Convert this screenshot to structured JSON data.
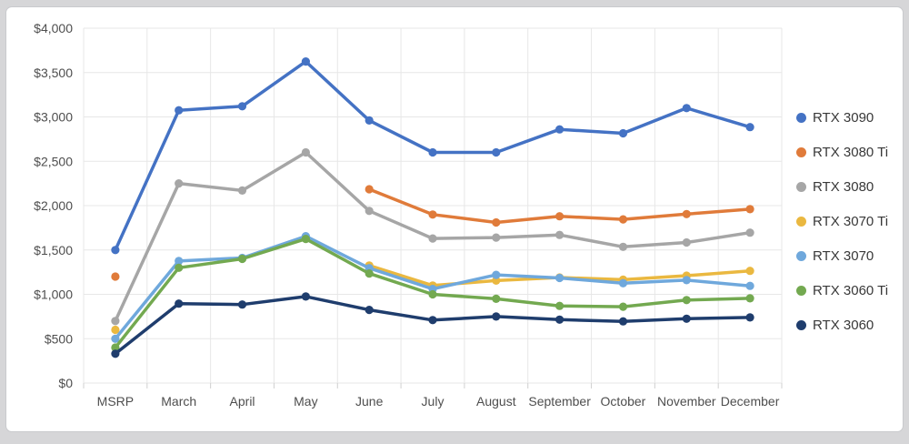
{
  "chart_data": {
    "type": "line",
    "title": "",
    "xlabel": "",
    "ylabel": "",
    "categories": [
      "MSRP",
      "March",
      "April",
      "May",
      "June",
      "July",
      "August",
      "September",
      "October",
      "November",
      "December"
    ],
    "series": [
      {
        "name": "RTX 3090",
        "color": "#4472c4",
        "values": [
          1500,
          3075,
          3120,
          3625,
          2960,
          2600,
          2600,
          2860,
          2815,
          3100,
          2885
        ]
      },
      {
        "name": "RTX 3080 Ti",
        "color": "#e07b3a",
        "values": [
          1200,
          null,
          null,
          null,
          2185,
          1900,
          1810,
          1880,
          1845,
          1905,
          1960
        ]
      },
      {
        "name": "RTX 3080",
        "color": "#a6a6a6",
        "values": [
          700,
          2250,
          2170,
          2600,
          1940,
          1630,
          1640,
          1670,
          1535,
          1585,
          1695
        ]
      },
      {
        "name": "RTX 3070 Ti",
        "color": "#eab840",
        "values": [
          600,
          null,
          null,
          null,
          1325,
          1100,
          1155,
          1190,
          1165,
          1210,
          1265
        ]
      },
      {
        "name": "RTX 3070",
        "color": "#6fa8dc",
        "values": [
          500,
          1375,
          1410,
          1655,
          1295,
          1060,
          1220,
          1185,
          1125,
          1160,
          1095
        ]
      },
      {
        "name": "RTX 3060 Ti",
        "color": "#73a950",
        "values": [
          400,
          1300,
          1400,
          1625,
          1235,
          1000,
          950,
          870,
          860,
          935,
          955
        ]
      },
      {
        "name": "RTX 3060",
        "color": "#1f3d6d",
        "values": [
          330,
          895,
          885,
          975,
          825,
          710,
          750,
          715,
          695,
          725,
          740
        ]
      }
    ],
    "y_axis": {
      "min": 0,
      "max": 4000,
      "step": 500,
      "tick_prefix": "$"
    },
    "y_tick_labels": [
      "$0",
      "$500",
      "$1,000",
      "$1,500",
      "$2,000",
      "$2,500",
      "$3,000",
      "$3,500",
      "$4,000"
    ],
    "legend_position": "right",
    "grid": true
  },
  "colors": {
    "background": "#d6d6d8",
    "card": "#ffffff",
    "gridline": "#e7e7e7",
    "tick": "#d0d0d0",
    "axis_text": "#4e4e4e",
    "legend_text": "#383838"
  }
}
